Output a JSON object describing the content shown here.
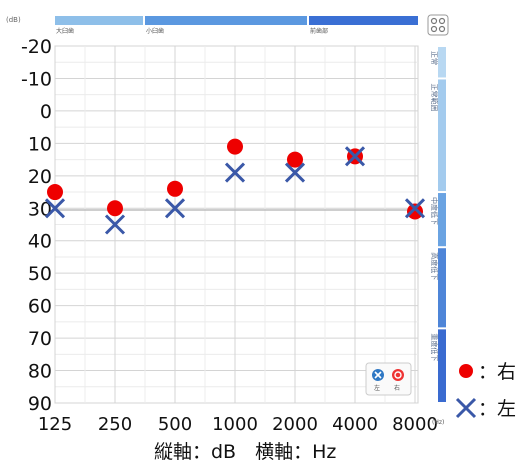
{
  "chart_data": {
    "type": "scatter",
    "unit_label": "(dB)",
    "x_unit_label": "(Hz)",
    "categories": [
      "125",
      "250",
      "500",
      "1000",
      "2000",
      "4000",
      "8000"
    ],
    "y_ticks": [
      "-20",
      "-10",
      "0",
      "10",
      "20",
      "30",
      "40",
      "50",
      "60",
      "70",
      "80",
      "90"
    ],
    "ylim": [
      -20,
      90
    ],
    "y_inverted": true,
    "grid": true,
    "axis_caption": "縦軸：dB　横軸：Hz",
    "series": [
      {
        "name": "右",
        "marker": "circle",
        "color": "#ee0000",
        "values": [
          25,
          30,
          24,
          11,
          15,
          14,
          31
        ]
      },
      {
        "name": "左",
        "marker": "cross",
        "color": "#3a58a8",
        "values": [
          30,
          35,
          30,
          19,
          19,
          14,
          30
        ]
      }
    ],
    "top_bands": [
      {
        "label": "大臼歯",
        "color": "#8ebfe9"
      },
      {
        "label": "小臼歯",
        "color": "#5b98e0"
      },
      {
        "label": "前歯部",
        "color": "#3a6fd4"
      }
    ],
    "side_bands": [
      {
        "label": "正常",
        "range": [
          -20,
          -10
        ],
        "color": "#b8d8f2"
      },
      {
        "label": "正常範囲",
        "range": [
          -10,
          25
        ],
        "color": "#a3cbee"
      },
      {
        "label": "中度低下",
        "range": [
          25,
          42
        ],
        "color": "#6aa3e2"
      },
      {
        "label": "高度低下",
        "range": [
          42,
          67
        ],
        "color": "#4e85d8"
      },
      {
        "label": "重度低下",
        "range": [
          67,
          90
        ],
        "color": "#3a6bd0"
      }
    ],
    "legend_box": {
      "left_label": "左",
      "right_label": "右"
    },
    "legend": [
      {
        "marker": "circle",
        "text": "：右"
      },
      {
        "marker": "cross",
        "text": "：左"
      }
    ]
  }
}
